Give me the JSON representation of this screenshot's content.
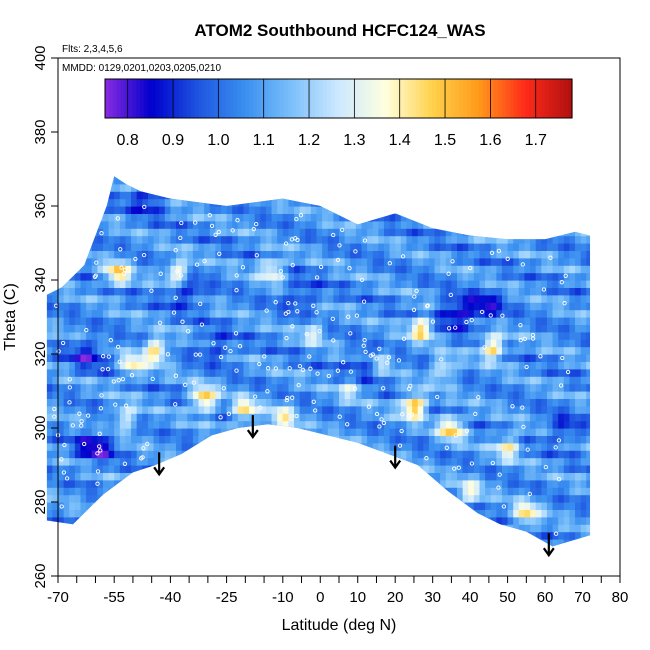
{
  "chart_data": {
    "type": "heatmap",
    "title": "ATOM2 Southbound HCFC124_WAS",
    "subtitle_flights": "Flts: 2,3,4,5,6",
    "subtitle_dates": "MMDD: 0129,0201,0203,0205,0210",
    "xlabel": "Latitude (deg N)",
    "ylabel": "Theta (C)",
    "xlim": [
      -70,
      80
    ],
    "ylim": [
      260,
      400
    ],
    "x_ticks": [
      -70,
      -55,
      -40,
      -25,
      -10,
      0,
      10,
      20,
      30,
      40,
      50,
      60,
      70,
      80
    ],
    "x_tick_labels": [
      "-70",
      "-55",
      "-40",
      "-25",
      "-10",
      "0",
      "10",
      "20",
      "30",
      "40",
      "50",
      "60",
      "70",
      "80"
    ],
    "x_minor_ticks": [
      -65,
      -60,
      -50,
      -45,
      -35,
      -30,
      -20,
      -15,
      -5,
      5,
      15,
      25,
      35,
      45,
      55,
      65,
      75
    ],
    "y_ticks": [
      260,
      280,
      300,
      320,
      340,
      360,
      380,
      400
    ],
    "y_tick_labels": [
      "260",
      "280",
      "300",
      "320",
      "340",
      "360",
      "380",
      "400"
    ],
    "grid": false,
    "colorbar": {
      "placement": "top",
      "min": 0.75,
      "max": 1.78,
      "ticks": [
        0.8,
        0.9,
        1.0,
        1.1,
        1.2,
        1.3,
        1.4,
        1.5,
        1.6,
        1.7
      ],
      "tick_labels": [
        "0.8",
        "0.9",
        "1.0",
        "1.1",
        "1.2",
        "1.3",
        "1.4",
        "1.5",
        "1.6",
        "1.7"
      ],
      "colors": [
        "#8a2be2",
        "#0000cd",
        "#1e56e0",
        "#3a8ff0",
        "#7cc0fa",
        "#cde9ff",
        "#ffffe0",
        "#ffd24d",
        "#ff9a1a",
        "#ff2a1a",
        "#b01010"
      ]
    },
    "domain": {
      "lat_bounds": [
        -73,
        72
      ],
      "top_curve": [
        [
          -73,
          336
        ],
        [
          -69,
          338
        ],
        [
          -63,
          344
        ],
        [
          -57,
          360
        ],
        [
          -55,
          368
        ],
        [
          -52,
          366
        ],
        [
          -48,
          364
        ],
        [
          -40,
          362
        ],
        [
          -25,
          360
        ],
        [
          -10,
          362
        ],
        [
          0,
          360
        ],
        [
          10,
          355
        ],
        [
          20,
          358
        ],
        [
          30,
          354
        ],
        [
          40,
          352
        ],
        [
          50,
          351
        ],
        [
          60,
          351
        ],
        [
          68,
          353
        ],
        [
          72,
          352
        ]
      ],
      "bottom_curve": [
        [
          -73,
          275
        ],
        [
          -66,
          274
        ],
        [
          -58,
          282
        ],
        [
          -50,
          288
        ],
        [
          -44,
          290
        ],
        [
          -37,
          293
        ],
        [
          -29,
          298
        ],
        [
          -22,
          300
        ],
        [
          -14,
          301
        ],
        [
          -6,
          300
        ],
        [
          2,
          298
        ],
        [
          10,
          296
        ],
        [
          18,
          293
        ],
        [
          26,
          290
        ],
        [
          34,
          283
        ],
        [
          42,
          277
        ],
        [
          48,
          274
        ],
        [
          55,
          272
        ],
        [
          62,
          268
        ],
        [
          72,
          271
        ]
      ]
    },
    "arrows_lat": [
      -43,
      -18,
      20,
      61
    ],
    "hotspots": [
      {
        "lat": -54,
        "theta": 342,
        "value": 1.5
      },
      {
        "lat": -38,
        "theta": 342,
        "value": 1.45
      },
      {
        "lat": -31,
        "theta": 308,
        "value": 1.55
      },
      {
        "lat": -20,
        "theta": 305,
        "value": 1.45
      },
      {
        "lat": -10,
        "theta": 303,
        "value": 1.4
      },
      {
        "lat": -13,
        "theta": 343,
        "value": 1.4
      },
      {
        "lat": -50,
        "theta": 317,
        "value": 1.4
      },
      {
        "lat": -52,
        "theta": 303,
        "value": 1.35
      },
      {
        "lat": -44,
        "theta": 321,
        "value": 1.5
      },
      {
        "lat": 25,
        "theta": 306,
        "value": 1.6
      },
      {
        "lat": 27,
        "theta": 327,
        "value": 1.5
      },
      {
        "lat": 35,
        "theta": 300,
        "value": 1.5
      },
      {
        "lat": 46,
        "theta": 322,
        "value": 1.5
      },
      {
        "lat": 50,
        "theta": 295,
        "value": 1.4
      },
      {
        "lat": 40,
        "theta": 283,
        "value": 1.35
      },
      {
        "lat": 55,
        "theta": 277,
        "value": 1.45
      },
      {
        "lat": 33,
        "theta": 316,
        "value": 1.35
      },
      {
        "lat": 16,
        "theta": 318,
        "value": 1.3
      },
      {
        "lat": -2,
        "theta": 326,
        "value": 1.3
      },
      {
        "lat": 8,
        "theta": 311,
        "value": 1.3
      }
    ],
    "coldspots": [
      {
        "lat": -60,
        "theta": 295,
        "value": 0.85
      },
      {
        "lat": -62,
        "theta": 320,
        "value": 0.9
      },
      {
        "lat": -46,
        "theta": 362,
        "value": 0.9
      },
      {
        "lat": -36,
        "theta": 337,
        "value": 0.9
      },
      {
        "lat": -5,
        "theta": 336,
        "value": 0.95
      },
      {
        "lat": 36,
        "theta": 331,
        "value": 0.85
      },
      {
        "lat": 44,
        "theta": 333,
        "value": 0.9
      },
      {
        "lat": 12,
        "theta": 317,
        "value": 0.92
      },
      {
        "lat": -28,
        "theta": 322,
        "value": 0.95
      },
      {
        "lat": 65,
        "theta": 300,
        "value": 0.95
      }
    ]
  }
}
